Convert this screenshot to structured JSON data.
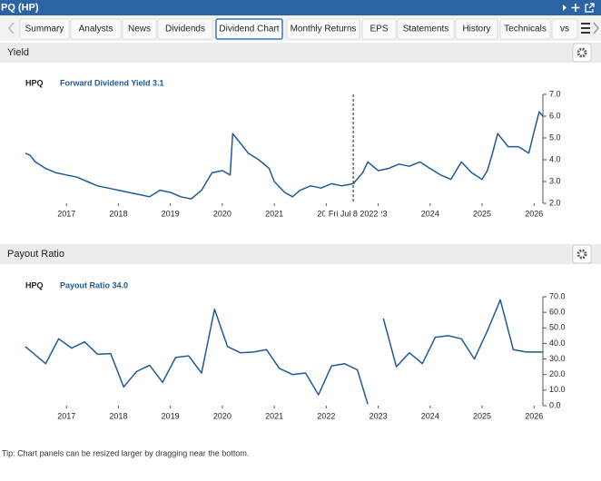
{
  "header": {
    "title": "PQ (HP)"
  },
  "tabs": [
    {
      "label": "Summary",
      "active": false
    },
    {
      "label": "Analysts",
      "active": false
    },
    {
      "label": "News",
      "active": false
    },
    {
      "label": "Dividends",
      "active": false
    },
    {
      "label": "Dividend Chart",
      "active": true
    },
    {
      "label": "Monthly Returns",
      "active": false
    },
    {
      "label": "EPS",
      "active": false
    },
    {
      "label": "Statements",
      "active": false
    },
    {
      "label": "History",
      "active": false
    },
    {
      "label": "Technicals",
      "active": false
    },
    {
      "label": "vs",
      "active": false
    }
  ],
  "chart_data": [
    {
      "type": "line",
      "title": "Yield",
      "legend_title": "HPQ",
      "crosshair": {
        "label": "Fri Jul 8 2022",
        "x": 2022.52
      },
      "x": [
        2016.21,
        2016.3,
        2016.4,
        2016.6,
        2016.8,
        2017.0,
        2017.2,
        2017.4,
        2017.6,
        2017.8,
        2018.0,
        2018.2,
        2018.4,
        2018.6,
        2018.8,
        2019.0,
        2019.2,
        2019.4,
        2019.6,
        2019.8,
        2020.0,
        2020.15,
        2020.2,
        2020.3,
        2020.5,
        2020.7,
        2020.9,
        2021.0,
        2021.2,
        2021.35,
        2021.5,
        2021.7,
        2021.9,
        2022.1,
        2022.3,
        2022.52,
        2022.7,
        2022.8,
        2023.0,
        2023.2,
        2023.4,
        2023.6,
        2023.8,
        2024.0,
        2024.2,
        2024.4,
        2024.6,
        2024.8,
        2025.0,
        2025.1,
        2025.2,
        2025.3,
        2025.5,
        2025.7,
        2025.9,
        2026.0,
        2026.1,
        2026.17
      ],
      "series": [
        {
          "name": "Forward Dividend Yield 3.1",
          "color": "#1f5a96",
          "values": [
            4.3,
            4.2,
            3.9,
            3.6,
            3.4,
            3.3,
            3.2,
            3.0,
            2.8,
            2.7,
            2.6,
            2.5,
            2.4,
            2.3,
            2.6,
            2.5,
            2.3,
            2.2,
            2.6,
            3.4,
            3.5,
            3.3,
            5.2,
            4.9,
            4.3,
            4.0,
            3.6,
            3.0,
            2.5,
            2.3,
            2.6,
            2.8,
            2.7,
            2.9,
            2.8,
            2.9,
            3.4,
            3.9,
            3.5,
            3.6,
            3.8,
            3.7,
            3.9,
            3.6,
            3.3,
            3.1,
            3.9,
            3.4,
            3.1,
            3.5,
            4.3,
            5.2,
            4.6,
            4.6,
            4.3,
            5.3,
            6.2,
            6.0
          ]
        }
      ],
      "xlim": [
        2016.21,
        2026.17
      ],
      "xticks": [
        2017,
        2018,
        2019,
        2020,
        2021,
        2022,
        2023,
        2024,
        2025,
        2026
      ],
      "ylim": [
        2,
        7
      ],
      "yticks": [
        {
          "value": 2,
          "label": "2.0"
        },
        {
          "value": 3,
          "label": "3.0"
        },
        {
          "value": 4,
          "label": "4.0"
        },
        {
          "value": 5,
          "label": "5.0"
        },
        {
          "value": 6,
          "label": "6.0"
        },
        {
          "value": 7,
          "label": "7.0"
        }
      ],
      "grid": false
    },
    {
      "type": "line",
      "title": "Payout Ratio",
      "legend_title": "HPQ",
      "x": [
        2016.21,
        2016.6,
        2016.85,
        2017.1,
        2017.35,
        2017.6,
        2017.85,
        2018.1,
        2018.35,
        2018.6,
        2018.85,
        2019.1,
        2019.35,
        2019.6,
        2019.85,
        2020.1,
        2020.35,
        2020.6,
        2020.85,
        2021.1,
        2021.35,
        2021.6,
        2021.85,
        2022.1,
        2022.35,
        2022.6,
        2022.8,
        2022.95,
        2023.1,
        2023.35,
        2023.6,
        2023.85,
        2024.1,
        2024.35,
        2024.6,
        2024.85,
        2025.1,
        2025.35,
        2025.6,
        2025.85,
        2026.17
      ],
      "series": [
        {
          "name": "Payout Ratio 34.0",
          "color": "#1f5a96",
          "values": [
            38,
            27,
            43,
            37,
            41,
            33,
            33.5,
            12,
            22,
            26,
            15,
            31,
            32,
            21,
            62,
            38,
            34,
            34.5,
            36,
            24,
            20,
            21,
            7,
            25.5,
            27,
            23,
            1,
            null,
            56,
            25,
            34,
            27,
            44,
            45,
            43,
            30,
            48,
            68,
            36,
            34.5,
            34.5
          ]
        }
      ],
      "xlim": [
        2016.21,
        2026.17
      ],
      "xticks": [
        2017,
        2018,
        2019,
        2020,
        2021,
        2022,
        2023,
        2024,
        2025,
        2026
      ],
      "ylim": [
        0,
        70
      ],
      "yticks": [
        {
          "value": 0,
          "label": "0.0"
        },
        {
          "value": 10,
          "label": "10.0"
        },
        {
          "value": 20,
          "label": "20.0"
        },
        {
          "value": 30,
          "label": "30.0"
        },
        {
          "value": 40,
          "label": "40.0"
        },
        {
          "value": 50,
          "label": "50.0"
        },
        {
          "value": 60,
          "label": "60.0"
        },
        {
          "value": 70,
          "label": "70.0"
        }
      ],
      "grid": false
    }
  ],
  "tip": "Tip: Chart panels can be resized larger by dragging near the bottom."
}
